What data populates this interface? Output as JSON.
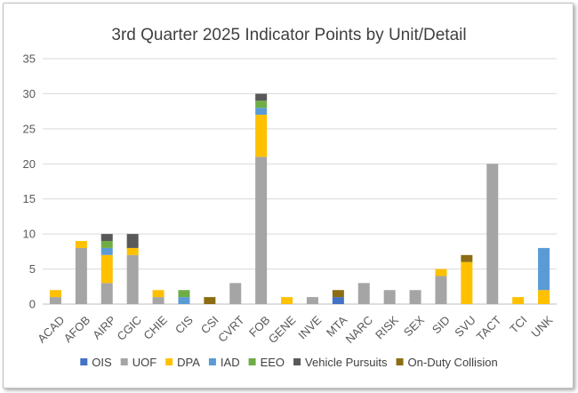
{
  "chart_data": {
    "type": "bar",
    "stacked": true,
    "title": "3rd Quarter 2025 Indicator Points by Unit/Detail",
    "xlabel": "",
    "ylabel": "",
    "ylim": [
      0,
      35
    ],
    "yticks": [
      0,
      5,
      10,
      15,
      20,
      25,
      30,
      35
    ],
    "grid": true,
    "legend_position": "bottom",
    "categories": [
      "ACAD",
      "AFOB",
      "AIRP",
      "CGIC",
      "CHIE",
      "CIS",
      "CSI",
      "CVRT",
      "FOB",
      "GENE",
      "INVE",
      "MTA",
      "NARC",
      "RISK",
      "SEX",
      "SID",
      "SVU",
      "TACT",
      "TCI",
      "UNK"
    ],
    "series": [
      {
        "name": "OIS",
        "color": "#4472c4",
        "values": [
          0,
          0,
          0,
          0,
          0,
          0,
          0,
          0,
          0,
          0,
          0,
          1,
          0,
          0,
          0,
          0,
          0,
          0,
          0,
          0
        ]
      },
      {
        "name": "UOF",
        "color": "#a5a5a5",
        "values": [
          1,
          8,
          3,
          7,
          1,
          0,
          0,
          3,
          21,
          0,
          1,
          0,
          3,
          2,
          2,
          4,
          0,
          20,
          0,
          0
        ]
      },
      {
        "name": "DPA",
        "color": "#ffc000",
        "values": [
          1,
          1,
          4,
          1,
          1,
          0,
          0,
          0,
          6,
          1,
          0,
          0,
          0,
          0,
          0,
          1,
          6,
          0,
          1,
          2
        ]
      },
      {
        "name": "IAD",
        "color": "#5b9bd5",
        "values": [
          0,
          0,
          1,
          0,
          0,
          1,
          0,
          0,
          1,
          0,
          0,
          0,
          0,
          0,
          0,
          0,
          0,
          0,
          0,
          6
        ]
      },
      {
        "name": "EEO",
        "color": "#70ad47",
        "values": [
          0,
          0,
          1,
          0,
          0,
          1,
          0,
          0,
          1,
          0,
          0,
          0,
          0,
          0,
          0,
          0,
          0,
          0,
          0,
          0
        ]
      },
      {
        "name": "Vehicle Pursuits",
        "color": "#595959",
        "values": [
          0,
          0,
          1,
          2,
          0,
          0,
          0,
          0,
          1,
          0,
          0,
          0,
          0,
          0,
          0,
          0,
          0,
          0,
          0,
          0
        ]
      },
      {
        "name": "On-Duty Collision",
        "color": "#8c6d13",
        "values": [
          0,
          0,
          0,
          0,
          0,
          0,
          1,
          0,
          0,
          0,
          0,
          1,
          0,
          0,
          0,
          0,
          1,
          0,
          0,
          0
        ]
      }
    ]
  }
}
